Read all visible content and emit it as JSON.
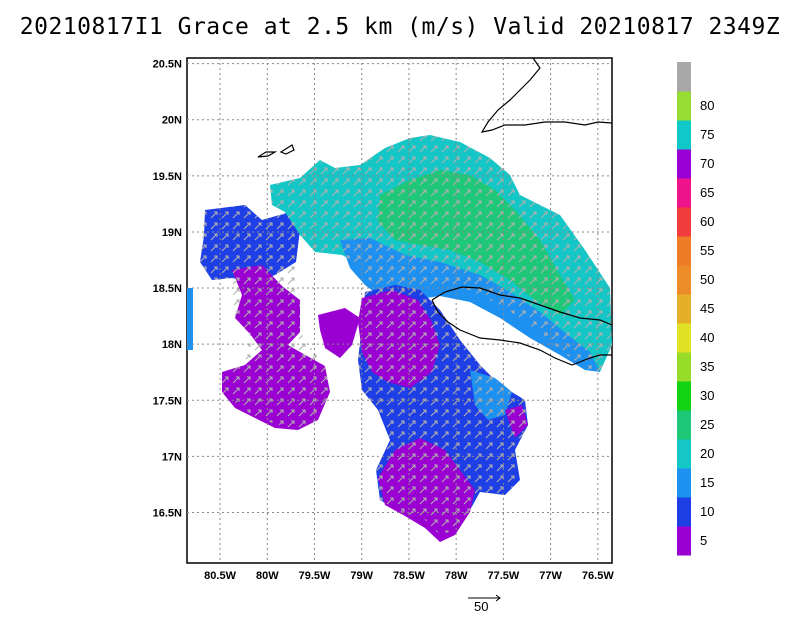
{
  "title": "20210817I1 Grace at 2.5 km (m/s) Valid 20210817 2349Z",
  "map": {
    "lon_labels": [
      "80.5W",
      "80W",
      "79.5W",
      "79W",
      "78.5W",
      "78W",
      "77.5W",
      "77W",
      "76.5W"
    ],
    "lat_labels": [
      "20.5N",
      "20N",
      "19.5N",
      "19N",
      "18.5N",
      "18N",
      "17.5N",
      "17N",
      "16.5N"
    ],
    "lon_values": [
      -80.5,
      -80.0,
      -79.5,
      -79.0,
      -78.5,
      -78.0,
      -77.5,
      -77.0,
      -76.5
    ],
    "lat_values": [
      20.5,
      20.0,
      19.5,
      19.0,
      18.5,
      18.0,
      17.5,
      17.0,
      16.5
    ],
    "lon_range": [
      -80.85,
      -76.35
    ],
    "lat_range": [
      16.05,
      20.55
    ],
    "grid": "dotted",
    "coastlines": [
      "Cuba (north coast)",
      "Jamaica"
    ]
  },
  "colorbar": {
    "labels": [
      "5",
      "10",
      "15",
      "20",
      "25",
      "30",
      "35",
      "40",
      "45",
      "50",
      "55",
      "60",
      "65",
      "70",
      "75",
      "80"
    ],
    "colors": [
      "#9b00d2",
      "#1f3fe6",
      "#1e90f0",
      "#14c6c6",
      "#1ec878",
      "#14d214",
      "#96dc28",
      "#e1e128",
      "#e6af28",
      "#ec8c28",
      "#ee7b26",
      "#f03c3c",
      "#f0148c",
      "#9a00d4",
      "#10c8c8",
      "#96dc32",
      "#a8a8a8"
    ],
    "position": "right",
    "units": "m/s"
  },
  "reference_vector": {
    "label": "50",
    "units": "m/s"
  }
}
